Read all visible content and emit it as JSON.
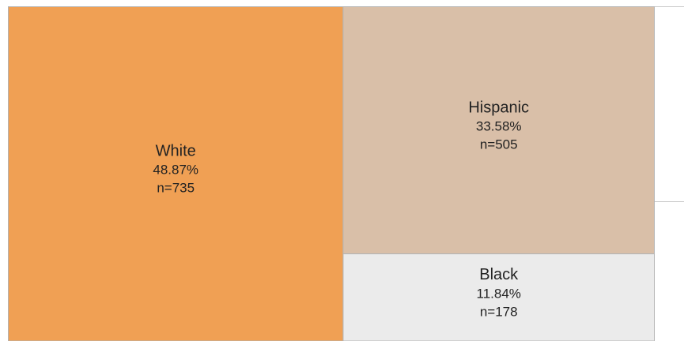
{
  "chart_data": {
    "type": "treemap",
    "categories": [
      "White",
      "Hispanic",
      "Black"
    ],
    "values": [
      48.87,
      33.58,
      11.84
    ],
    "value_labels": [
      "48.87%",
      "33.58%",
      "11.84%"
    ],
    "counts": [
      735,
      505,
      178
    ],
    "count_labels": [
      "n=735",
      "n=505",
      "n=178"
    ],
    "colors": [
      "#f0a054",
      "#d9bfa8",
      "#ebebeb"
    ]
  }
}
